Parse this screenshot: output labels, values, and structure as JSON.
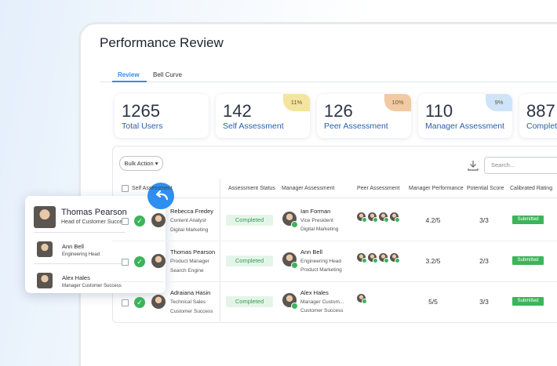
{
  "header": {
    "title": "Performance Review"
  },
  "tabs": [
    "Review",
    "Bell Curve"
  ],
  "stats": [
    {
      "value": 1265,
      "label": "Total Users"
    },
    {
      "value": 142,
      "label": "Self Assessment",
      "badge": "11%"
    },
    {
      "value": 126,
      "label": "Peer Assessment",
      "badge": "10%"
    },
    {
      "value": 110,
      "label": "Manager Assessment",
      "badge": "9%"
    },
    {
      "value": 887,
      "label": "Complete"
    }
  ],
  "toolbar": {
    "bulk_action": "Bulk Action",
    "search_placeholder": "Search..."
  },
  "table": {
    "columns": [
      "Self Assessment",
      "Assessment Status",
      "Manager Assessment",
      "Peer Assessment",
      "Manager Performance",
      "Potential Score",
      "Calibrated Rating"
    ],
    "rows": [
      {
        "employee": {
          "name": "Rebecca Fredey",
          "title": "Content Analyst",
          "department": "Digital Marketing"
        },
        "status": "Completed",
        "manager": {
          "name": "Ian Forman",
          "title": "Vice President",
          "department": "Digital Marketing"
        },
        "manager_performance": "4.2/5",
        "potential_score": "3/3",
        "calibrated_rating": "Submitted"
      },
      {
        "employee": {
          "name": "Thomas Pearson",
          "title": "Product Manager",
          "department": "Search Engine"
        },
        "status": "Completed",
        "manager": {
          "name": "Ann Bell",
          "title": "Engineering Head",
          "department": "Product Marketing"
        },
        "manager_performance": "3.2/5",
        "potential_score": "2/3",
        "calibrated_rating": "Submitted"
      },
      {
        "employee": {
          "name": "Adraiana Hasin",
          "title": "Technical Sales",
          "department": "Customer Success"
        },
        "status": "Completed",
        "manager": {
          "name": "Alex Hales",
          "title": "Manager Custom...",
          "department": "Customer Success"
        },
        "manager_performance": "5/5",
        "potential_score": "3/3",
        "calibrated_rating": "Submitted"
      }
    ]
  },
  "popup": {
    "name": "Thomas Pearson",
    "title": "Head of Customer Success",
    "people": [
      {
        "name": "Ann Bell",
        "title": "Engineering Head"
      },
      {
        "name": "Alex Hales",
        "title": "Manager Customer Success"
      }
    ]
  }
}
